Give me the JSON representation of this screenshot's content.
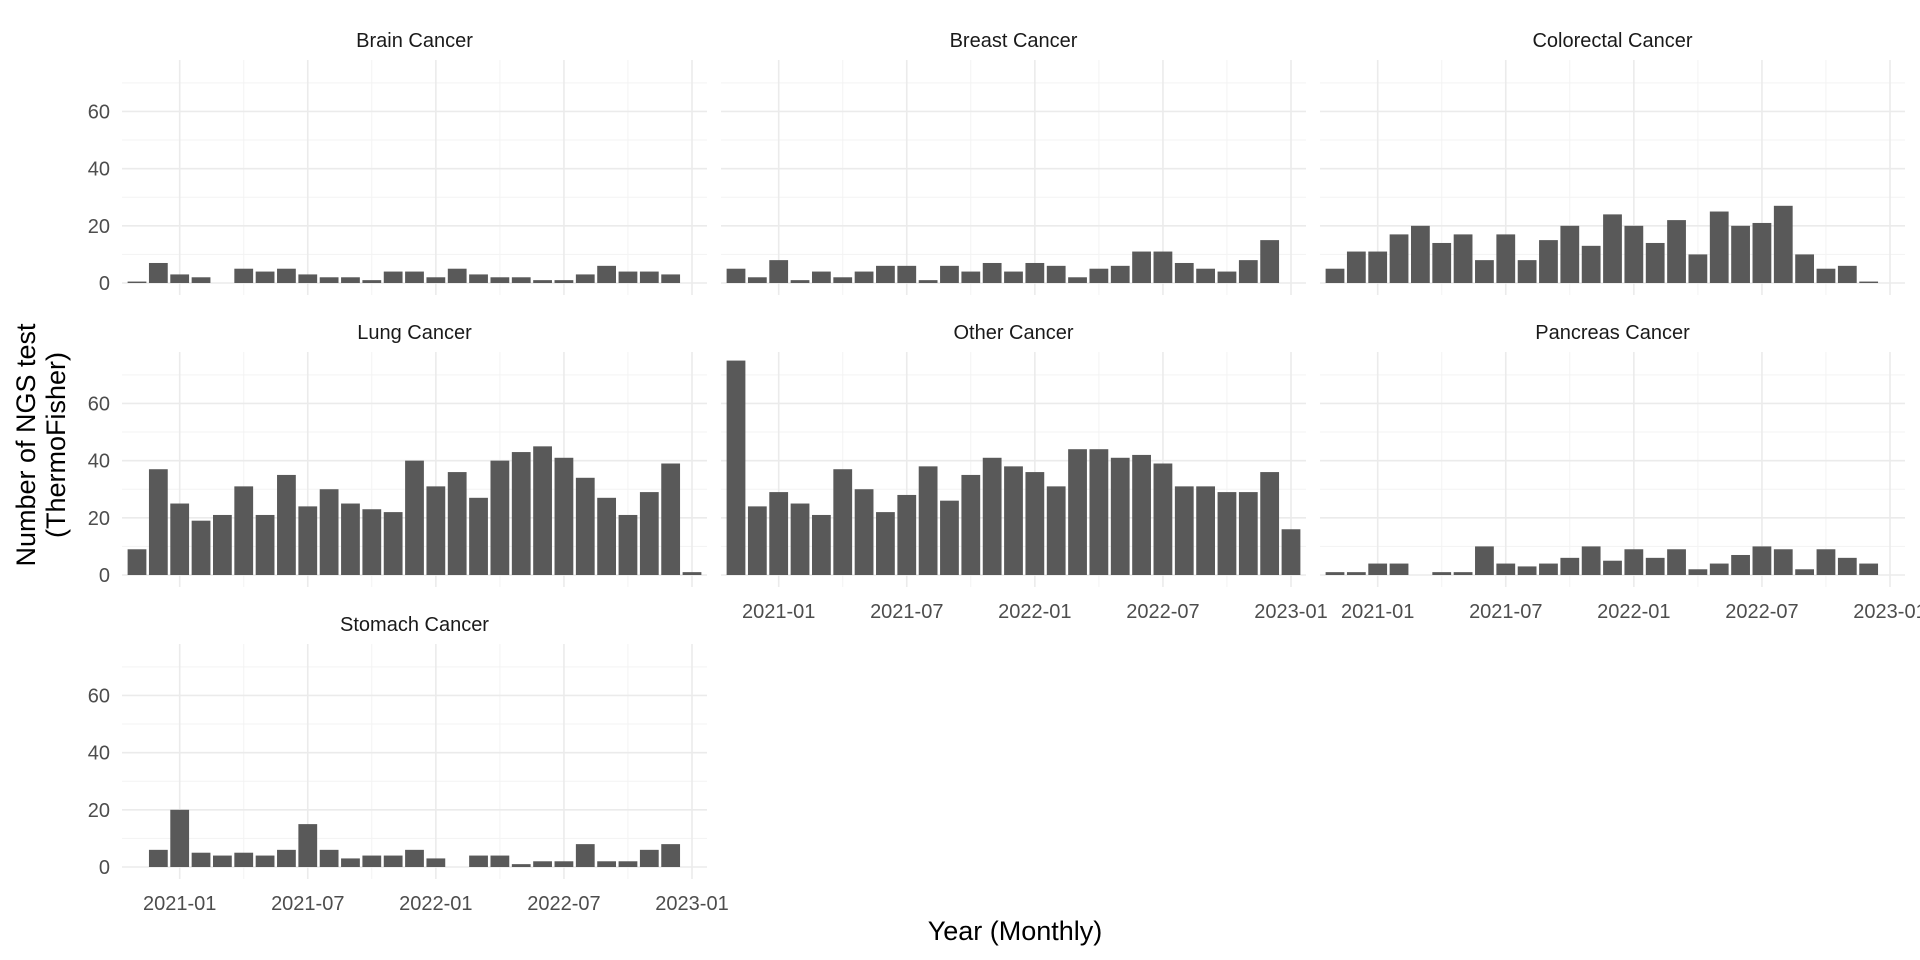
{
  "chart_data": {
    "type": "bar",
    "xlabel": "Year (Monthly)",
    "ylabel_lines": [
      "Number of NGS test",
      "(ThermoFisher)"
    ],
    "ylim": [
      0,
      78
    ],
    "yticks": [
      0,
      20,
      40,
      60
    ],
    "xticks": [
      "2021-01",
      "2021-07",
      "2022-01",
      "2022-07",
      "2023-01"
    ],
    "x_start": "2020-11",
    "x_end": "2023-01",
    "grid": true,
    "color": "#595959",
    "facets": [
      {
        "name": "Brain Cancer",
        "months": [
          "2020-12",
          "2021-01",
          "2021-02",
          "2021-04",
          "2021-05",
          "2021-06",
          "2021-07",
          "2021-08",
          "2021-09",
          "2021-10",
          "2021-11",
          "2021-12",
          "2022-01",
          "2022-02",
          "2022-03",
          "2022-04",
          "2022-05",
          "2022-06",
          "2022-07",
          "2022-08",
          "2022-09",
          "2022-10",
          "2022-11",
          "2022-12"
        ],
        "values": [
          7,
          3,
          2,
          5,
          4,
          5,
          3,
          2,
          2,
          1,
          4,
          4,
          2,
          5,
          3,
          2,
          2,
          1,
          1,
          3,
          6,
          4,
          4,
          3
        ]
      },
      {
        "name": "Breast Cancer",
        "months": [
          "2020-11",
          "2020-12",
          "2021-01",
          "2021-02",
          "2021-03",
          "2021-04",
          "2021-05",
          "2021-06",
          "2021-07",
          "2021-08",
          "2021-09",
          "2021-10",
          "2021-11",
          "2021-12",
          "2022-01",
          "2022-02",
          "2022-03",
          "2022-04",
          "2022-05",
          "2022-06",
          "2022-07",
          "2022-08",
          "2022-09",
          "2022-10",
          "2022-11",
          "2022-12"
        ],
        "values": [
          5,
          2,
          8,
          1,
          4,
          2,
          4,
          6,
          6,
          1,
          6,
          4,
          7,
          4,
          7,
          6,
          2,
          5,
          6,
          11,
          11,
          7,
          5,
          4,
          8,
          15
        ]
      },
      {
        "name": "Colorectal Cancer",
        "months": [
          "2020-11",
          "2020-12",
          "2021-01",
          "2021-02",
          "2021-03",
          "2021-04",
          "2021-05",
          "2021-06",
          "2021-07",
          "2021-08",
          "2021-09",
          "2021-10",
          "2021-11",
          "2021-12",
          "2022-01",
          "2022-02",
          "2022-03",
          "2022-04",
          "2022-05",
          "2022-06",
          "2022-07",
          "2022-08",
          "2022-09",
          "2022-10",
          "2022-11"
        ],
        "values": [
          5,
          11,
          11,
          17,
          20,
          14,
          17,
          8,
          17,
          8,
          15,
          20,
          13,
          24,
          20,
          14,
          22,
          10,
          25,
          20,
          21,
          27,
          10,
          5,
          6
        ]
      },
      {
        "name": "Lung Cancer",
        "months": [
          "2020-11",
          "2020-12",
          "2021-01",
          "2021-02",
          "2021-03",
          "2021-04",
          "2021-05",
          "2021-06",
          "2021-07",
          "2021-08",
          "2021-09",
          "2021-10",
          "2021-11",
          "2021-12",
          "2022-01",
          "2022-02",
          "2022-03",
          "2022-04",
          "2022-05",
          "2022-06",
          "2022-07",
          "2022-08",
          "2022-09",
          "2022-10",
          "2022-11",
          "2022-12"
        ],
        "values": [
          9,
          37,
          25,
          19,
          21,
          31,
          21,
          35,
          24,
          30,
          25,
          23,
          22,
          40,
          31,
          36,
          27,
          40,
          43,
          45,
          41,
          34,
          27,
          21,
          29,
          39
        ]
      },
      {
        "name": "Other Cancer",
        "months": [
          "2020-11",
          "2020-12",
          "2021-01",
          "2021-02",
          "2021-03",
          "2021-04",
          "2021-05",
          "2021-06",
          "2021-07",
          "2021-08",
          "2021-09",
          "2021-10",
          "2021-11",
          "2021-12",
          "2022-01",
          "2022-02",
          "2022-03",
          "2022-04",
          "2022-05",
          "2022-06",
          "2022-07",
          "2022-08",
          "2022-09",
          "2022-10",
          "2022-11",
          "2022-12"
        ],
        "values": [
          75,
          24,
          29,
          25,
          21,
          37,
          30,
          22,
          28,
          38,
          26,
          35,
          41,
          38,
          36,
          31,
          44,
          44,
          41,
          42,
          39,
          31,
          31,
          29,
          29,
          36
        ]
      },
      {
        "name": "Pancreas Cancer",
        "months": [
          "2020-11",
          "2020-12",
          "2021-01",
          "2021-02",
          "2021-04",
          "2021-05",
          "2021-06",
          "2021-07",
          "2021-08",
          "2021-09",
          "2021-10",
          "2021-11",
          "2021-12",
          "2022-01",
          "2022-02",
          "2022-03",
          "2022-04",
          "2022-05",
          "2022-06",
          "2022-07",
          "2022-08",
          "2022-09",
          "2022-10",
          "2022-11",
          "2022-12"
        ],
        "values": [
          1,
          1,
          4,
          4,
          1,
          1,
          10,
          4,
          3,
          4,
          6,
          10,
          5,
          9,
          6,
          9,
          2,
          4,
          7,
          10,
          9,
          2,
          9,
          6,
          4
        ]
      },
      {
        "name": "Stomach Cancer",
        "months": [
          "2020-12",
          "2021-01",
          "2021-02",
          "2021-03",
          "2021-04",
          "2021-05",
          "2021-06",
          "2021-07",
          "2021-08",
          "2021-09",
          "2021-10",
          "2021-11",
          "2021-12",
          "2022-01",
          "2022-03",
          "2022-04",
          "2022-05",
          "2022-06",
          "2022-07",
          "2022-08",
          "2022-09",
          "2022-10",
          "2022-11",
          "2022-12"
        ],
        "values": [
          6,
          20,
          5,
          4,
          5,
          4,
          6,
          15,
          6,
          3,
          4,
          4,
          6,
          3,
          4,
          4,
          1,
          2,
          2,
          8,
          2,
          2,
          6,
          8
        ]
      }
    ]
  },
  "extra_marks": [
    {
      "facet": "Brain Cancer",
      "month": "2020-11",
      "value": 0.5
    },
    {
      "facet": "Lung Cancer",
      "month": "2023-01",
      "value": 1
    },
    {
      "facet": "Other Cancer",
      "month": "2023-01",
      "value": 16
    },
    {
      "facet": "Colorectal Cancer",
      "month": "2022-12",
      "value": 0.5
    }
  ]
}
